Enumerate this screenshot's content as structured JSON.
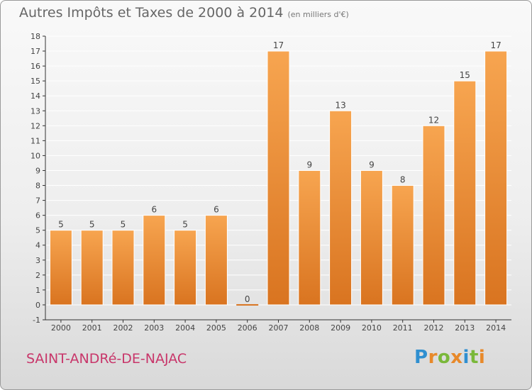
{
  "title": "Autres Impôts et Taxes de 2000 à 2014",
  "title_unit": "(en milliers d'€)",
  "commune": "SAINT-ANDRé-DE-NAJAC",
  "logo": {
    "text": "Proxiti",
    "letters": [
      {
        "ch": "P",
        "color": "#2f8fd0"
      },
      {
        "ch": "r",
        "color": "#e8892a"
      },
      {
        "ch": "o",
        "color": "#7ab83a"
      },
      {
        "ch": "x",
        "color": "#e8892a"
      },
      {
        "ch": "i",
        "color": "#2f8fd0"
      },
      {
        "ch": "t",
        "color": "#7ab83a"
      },
      {
        "ch": "i",
        "color": "#e8892a"
      }
    ]
  },
  "colors": {
    "bar_top": "#f7a550",
    "bar_bottom": "#d97420",
    "axis": "#333333",
    "grid": "#ffffff",
    "text": "#444444",
    "commune": "#c8366a"
  },
  "chart_data": {
    "type": "bar",
    "categories": [
      "2000",
      "2001",
      "2002",
      "2003",
      "2004",
      "2005",
      "2006",
      "2007",
      "2008",
      "2009",
      "2010",
      "2011",
      "2012",
      "2013",
      "2014"
    ],
    "values": [
      5,
      5,
      5,
      6,
      5,
      6,
      0,
      17,
      9,
      13,
      9,
      8,
      12,
      15,
      17
    ],
    "title": "Autres Impôts et Taxes de 2000 à 2014",
    "xlabel": "",
    "ylabel": "",
    "ylim": [
      -1,
      18
    ],
    "yticks": [
      "-1",
      "0",
      "1",
      "2",
      "3",
      "4",
      "5",
      "6",
      "7",
      "8",
      "9",
      "10",
      "11",
      "12",
      "13",
      "14",
      "15",
      "16",
      "17",
      "18"
    ],
    "grid": true,
    "data_labels": [
      "5",
      "5",
      "5",
      "6",
      "5",
      "6",
      "0",
      "17",
      "9",
      "13",
      "9",
      "8",
      "12",
      "15",
      "17"
    ]
  }
}
